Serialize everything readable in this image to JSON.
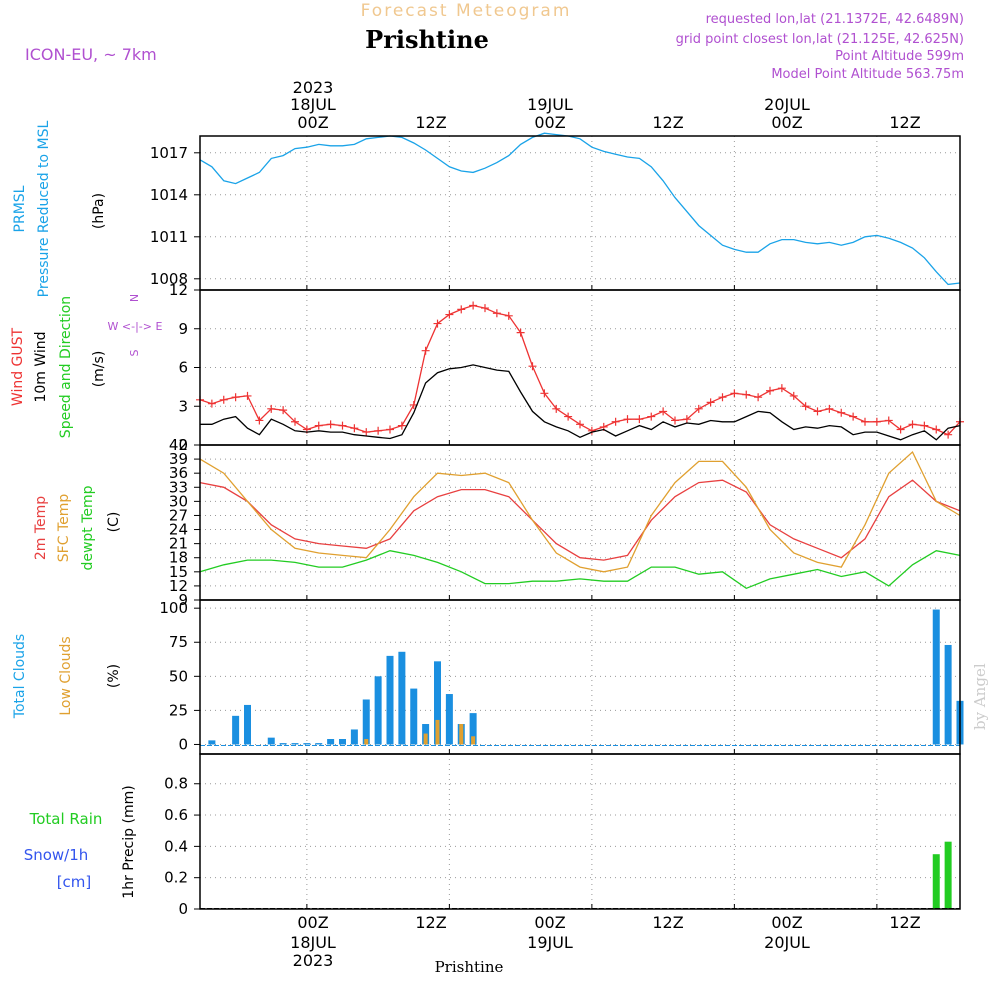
{
  "header": {
    "product": "Forecast Meteogram",
    "location": "Prishtine",
    "model": "ICON-EU, ~ 7km",
    "requested": "requested lon,lat (21.1372E, 42.6489N)",
    "gridpoint": "grid point closest lon,lat (21.125E, 42.625N)",
    "point_alt": "Point Altitude 599m",
    "model_alt": "Model Point Altitude 563.75m",
    "footer": "Prishtine",
    "credit": "by Angel"
  },
  "time_axis": {
    "top_year": "2023",
    "top_dates": [
      "18JUL",
      "19JUL",
      "20JUL"
    ],
    "hour_labels": [
      "00Z",
      "12Z",
      "00Z",
      "12Z",
      "00Z",
      "12Z"
    ],
    "bottom_dates": [
      "18JUL",
      "19JUL",
      "20JUL"
    ],
    "bottom_year": "2023"
  },
  "panel_labels": {
    "pressure": [
      "PRMSL",
      "Pressure Reduced to MSL",
      "(hPa)"
    ],
    "wind": [
      "Wind GUST",
      "10m Wind",
      "Speed and Direction",
      "(m/s)"
    ],
    "compass": [
      "N",
      "W <-|-> E",
      "S"
    ],
    "temp": [
      "2m Temp",
      "SFC Temp",
      "dewpt Temp",
      "(C)"
    ],
    "cloud": [
      "Total Clouds",
      "Low Clouds",
      "(%)"
    ],
    "precip": [
      "Total  Rain",
      "Snow/1h",
      "[cm]",
      "1hr Precip (mm)"
    ]
  },
  "colors": {
    "pressure": "#1aa3e8",
    "gust": "#ee3333",
    "wind": "#000000",
    "temp2m": "#e84040",
    "sfc": "#e0a030",
    "dewpt": "#22cc22",
    "total_cloud": "#1a8fe0",
    "low_cloud": "#e0a030",
    "rain": "#22cc22",
    "snow": "#3355ee",
    "header_orange": "#f0c890",
    "header_purple": "#b050d0"
  },
  "chart_data": [
    {
      "type": "line",
      "name": "pressure",
      "x_unit": "hours since 2023-07-17 15Z",
      "xlim": [
        0,
        64
      ],
      "ylim": [
        1007.2,
        1018.2
      ],
      "yticks": [
        1008,
        1011,
        1014,
        1017
      ],
      "series": [
        {
          "name": "PRMSL",
          "x": [
            0,
            1,
            2,
            3,
            4,
            5,
            6,
            7,
            8,
            9,
            10,
            11,
            12,
            13,
            14,
            15,
            16,
            17,
            18,
            19,
            20,
            21,
            22,
            23,
            24,
            25,
            26,
            27,
            28,
            29,
            30,
            31,
            32,
            33,
            34,
            35,
            36,
            37,
            38,
            39,
            40,
            41,
            42,
            43,
            44,
            45,
            46,
            47,
            48,
            49,
            50,
            51,
            52,
            53,
            54,
            55,
            56,
            57,
            58,
            59,
            60,
            61,
            62,
            63,
            64
          ],
          "values": [
            1016.5,
            1016.0,
            1015.0,
            1014.8,
            1015.2,
            1015.6,
            1016.6,
            1016.8,
            1017.3,
            1017.4,
            1017.6,
            1017.5,
            1017.5,
            1017.6,
            1018.0,
            1018.1,
            1018.2,
            1018.1,
            1017.7,
            1017.2,
            1016.6,
            1016.0,
            1015.7,
            1015.6,
            1015.9,
            1016.3,
            1016.8,
            1017.6,
            1018.1,
            1018.4,
            1018.3,
            1018.2,
            1018.0,
            1017.4,
            1017.1,
            1016.9,
            1016.7,
            1016.6,
            1016.0,
            1015.0,
            1013.8,
            1012.8,
            1011.8,
            1011.1,
            1010.4,
            1010.1,
            1009.9,
            1009.9,
            1010.5,
            1010.8,
            1010.8,
            1010.6,
            1010.5,
            1010.6,
            1010.4,
            1010.6,
            1011.0,
            1011.1,
            1010.9,
            1010.6,
            1010.2,
            1009.5,
            1008.5,
            1007.6,
            1007.7
          ]
        }
      ]
    },
    {
      "type": "line",
      "name": "wind",
      "xlim": [
        0,
        64
      ],
      "ylim": [
        0,
        12
      ],
      "yticks": [
        0,
        3,
        6,
        9,
        12
      ],
      "series": [
        {
          "name": "Wind GUST",
          "x": [
            0,
            1,
            2,
            3,
            4,
            5,
            6,
            7,
            8,
            9,
            10,
            11,
            12,
            13,
            14,
            15,
            16,
            17,
            18,
            19,
            20,
            21,
            22,
            23,
            24,
            25,
            26,
            27,
            28,
            29,
            30,
            31,
            32,
            33,
            34,
            35,
            36,
            37,
            38,
            39,
            40,
            41,
            42,
            43,
            44,
            45,
            46,
            47,
            48,
            49,
            50,
            51,
            52,
            53,
            54,
            55,
            56,
            57,
            58,
            59,
            60,
            61,
            62,
            63,
            64
          ],
          "values": [
            3.5,
            3.2,
            3.5,
            3.7,
            3.8,
            1.9,
            2.8,
            2.7,
            1.8,
            1.2,
            1.5,
            1.6,
            1.5,
            1.3,
            1.0,
            1.1,
            1.2,
            1.5,
            3.1,
            7.3,
            9.4,
            10.1,
            10.5,
            10.8,
            10.6,
            10.2,
            10.0,
            8.7,
            6.1,
            4.0,
            2.8,
            2.2,
            1.6,
            1.1,
            1.4,
            1.8,
            2.0,
            2.0,
            2.2,
            2.6,
            1.9,
            2.0,
            2.8,
            3.3,
            3.7,
            4.0,
            3.9,
            3.7,
            4.2,
            4.4,
            3.8,
            3.0,
            2.6,
            2.8,
            2.5,
            2.2,
            1.8,
            1.8,
            1.9,
            1.2,
            1.6,
            1.5,
            1.2,
            0.8,
            1.8
          ]
        },
        {
          "name": "10m Wind",
          "x": [
            0,
            1,
            2,
            3,
            4,
            5,
            6,
            7,
            8,
            9,
            10,
            11,
            12,
            13,
            14,
            15,
            16,
            17,
            18,
            19,
            20,
            21,
            22,
            23,
            24,
            25,
            26,
            27,
            28,
            29,
            30,
            31,
            32,
            33,
            34,
            35,
            36,
            37,
            38,
            39,
            40,
            41,
            42,
            43,
            44,
            45,
            46,
            47,
            48,
            49,
            50,
            51,
            52,
            53,
            54,
            55,
            56,
            57,
            58,
            59,
            60,
            61,
            62,
            63,
            64
          ],
          "values": [
            1.6,
            1.6,
            2.0,
            2.2,
            1.3,
            0.8,
            2.0,
            1.6,
            1.1,
            1.0,
            1.1,
            1.0,
            1.0,
            0.8,
            0.7,
            0.6,
            0.5,
            0.8,
            2.5,
            4.8,
            5.6,
            5.9,
            6.0,
            6.2,
            6.0,
            5.8,
            5.7,
            4.1,
            2.6,
            1.8,
            1.4,
            1.1,
            0.6,
            1.0,
            1.2,
            0.7,
            1.1,
            1.5,
            1.2,
            1.8,
            1.4,
            1.7,
            1.6,
            1.9,
            1.8,
            1.8,
            2.2,
            2.6,
            2.5,
            1.8,
            1.2,
            1.4,
            1.3,
            1.5,
            1.4,
            0.8,
            1.0,
            1.0,
            0.7,
            0.4,
            0.8,
            1.1,
            0.4,
            1.3,
            1.5
          ]
        }
      ]
    },
    {
      "type": "line",
      "name": "temperature",
      "xlim": [
        0,
        64
      ],
      "ylim": [
        9,
        42
      ],
      "yticks": [
        9,
        12,
        15,
        18,
        21,
        24,
        27,
        30,
        33,
        36,
        39,
        42
      ],
      "series": [
        {
          "name": "2m Temp",
          "x": [
            0,
            2,
            4,
            6,
            8,
            10,
            12,
            14,
            16,
            18,
            20,
            22,
            24,
            26,
            28,
            30,
            32,
            34,
            36,
            38,
            40,
            42,
            44,
            46,
            48,
            50,
            52,
            54,
            56,
            58,
            60,
            62,
            64
          ],
          "values": [
            34,
            33,
            30,
            25,
            22,
            21,
            20.5,
            20,
            22,
            28,
            31,
            32.5,
            32.5,
            31,
            26,
            21,
            18,
            17.5,
            18.5,
            26,
            31,
            34,
            34.5,
            32,
            25,
            22,
            20,
            18,
            22,
            31,
            34.5,
            30,
            28
          ]
        },
        {
          "name": "SFC Temp",
          "x": [
            0,
            2,
            4,
            6,
            8,
            10,
            12,
            14,
            16,
            18,
            20,
            22,
            24,
            26,
            28,
            30,
            32,
            34,
            36,
            38,
            40,
            42,
            44,
            46,
            48,
            50,
            52,
            54,
            56,
            58,
            60,
            62,
            64
          ],
          "values": [
            39,
            36,
            30,
            24,
            20,
            19,
            18.5,
            18,
            24,
            31,
            36,
            35.5,
            36,
            34,
            26,
            19,
            16,
            15,
            16,
            27,
            34,
            38.5,
            38.5,
            33,
            24,
            19,
            17,
            16,
            25,
            36,
            40.5,
            30,
            27
          ]
        },
        {
          "name": "dewpt Temp",
          "x": [
            0,
            2,
            4,
            6,
            8,
            10,
            12,
            14,
            16,
            18,
            20,
            22,
            24,
            26,
            28,
            30,
            32,
            34,
            36,
            38,
            40,
            42,
            44,
            46,
            48,
            50,
            52,
            54,
            56,
            58,
            60,
            62,
            64
          ],
          "values": [
            15,
            16.5,
            17.5,
            17.5,
            17,
            16,
            16,
            17.5,
            19.5,
            18.5,
            17,
            15,
            12.5,
            12.5,
            13,
            13,
            13.5,
            13,
            13,
            16,
            16,
            14.5,
            15,
            11.5,
            13.5,
            14.5,
            15.5,
            14,
            15,
            12,
            16.5,
            19.5,
            18.5
          ]
        }
      ]
    },
    {
      "type": "bar",
      "name": "clouds",
      "xlim": [
        0,
        64
      ],
      "ylim": [
        -7,
        106
      ],
      "yticks": [
        0,
        25,
        50,
        75,
        100
      ],
      "series": [
        {
          "name": "Total Clouds",
          "x": [
            0,
            1,
            2,
            3,
            4,
            5,
            6,
            7,
            8,
            9,
            10,
            11,
            12,
            13,
            14,
            15,
            16,
            17,
            18,
            19,
            20,
            21,
            22,
            23,
            24,
            25,
            26,
            27,
            28,
            29,
            30,
            31,
            32,
            33,
            34,
            35,
            36,
            37,
            38,
            39,
            40,
            41,
            42,
            43,
            44,
            45,
            46,
            47,
            48,
            49,
            50,
            51,
            52,
            53,
            54,
            55,
            56,
            57,
            58,
            59,
            60,
            61,
            62,
            63,
            64
          ],
          "values": [
            0,
            3,
            0,
            21,
            29,
            0,
            5,
            1,
            1,
            1,
            1,
            4,
            4,
            11,
            33,
            50,
            65,
            68,
            41,
            15,
            61,
            37,
            15,
            23,
            0,
            0,
            0,
            0,
            0,
            0,
            0,
            0,
            0,
            0,
            0,
            0,
            0,
            0,
            0,
            0,
            0,
            0,
            0,
            0,
            0,
            0,
            0,
            0,
            0,
            0,
            0,
            0,
            0,
            0,
            0,
            0,
            0,
            0,
            0,
            0,
            0,
            0,
            99,
            73,
            32
          ]
        },
        {
          "name": "Low Clouds",
          "x": [
            0,
            1,
            2,
            3,
            4,
            5,
            6,
            7,
            8,
            9,
            10,
            11,
            12,
            13,
            14,
            15,
            16,
            17,
            18,
            19,
            20,
            21,
            22,
            23,
            24,
            25,
            26,
            27,
            28,
            29,
            30,
            31,
            32,
            33,
            34,
            35,
            36,
            37,
            38,
            39,
            40,
            41,
            42,
            43,
            44,
            45,
            46,
            47,
            48,
            49,
            50,
            51,
            52,
            53,
            54,
            55,
            56,
            57,
            58,
            59,
            60,
            61,
            62,
            63,
            64
          ],
          "values": [
            0,
            0,
            0,
            0,
            0,
            0,
            0,
            0,
            0,
            0,
            0,
            0,
            0,
            0,
            4,
            0,
            0,
            0,
            0,
            8,
            18,
            0,
            15,
            6,
            0,
            0,
            0,
            0,
            0,
            0,
            0,
            0,
            0,
            0,
            0,
            0,
            0,
            0,
            0,
            0,
            0,
            0,
            0,
            0,
            0,
            0,
            0,
            0,
            0,
            0,
            0,
            0,
            0,
            0,
            0,
            0,
            0,
            0,
            0,
            0,
            0,
            0,
            0,
            0,
            0
          ]
        }
      ]
    },
    {
      "type": "bar",
      "name": "precipitation",
      "xlim": [
        0,
        64
      ],
      "ylim": [
        0,
        0.99
      ],
      "yticks": [
        0,
        0.2,
        0.4,
        0.6,
        0.8
      ],
      "series": [
        {
          "name": "Total Rain",
          "x": [
            62,
            63
          ],
          "values": [
            0.35,
            0.43
          ]
        }
      ]
    }
  ]
}
